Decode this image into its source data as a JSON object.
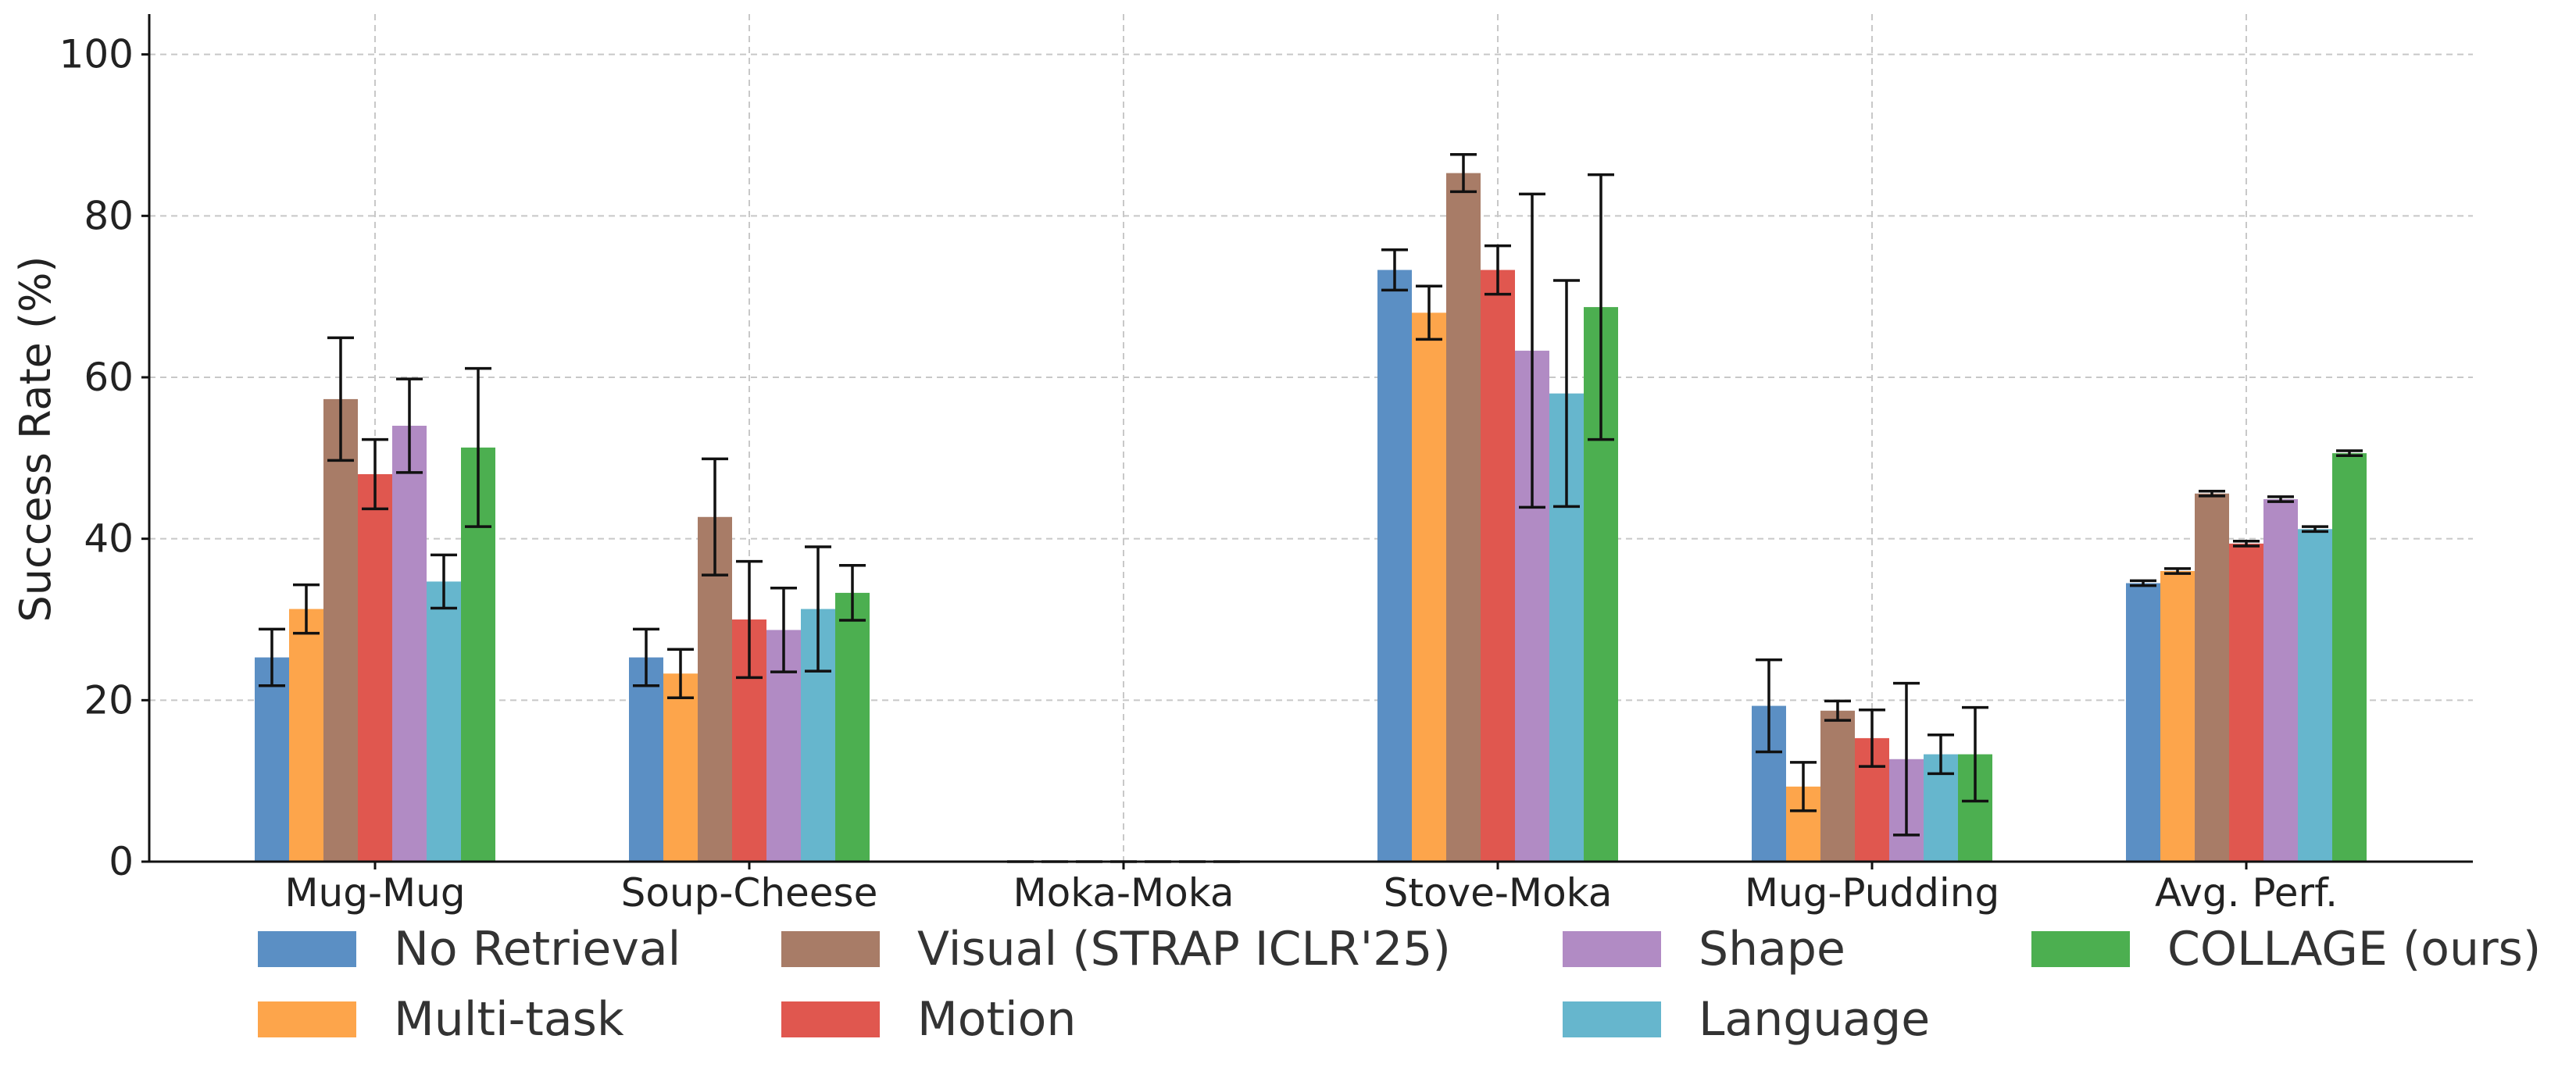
{
  "chart_data": {
    "type": "bar",
    "title": "",
    "xlabel": "",
    "ylabel": "Success Rate (%)",
    "ylim": [
      0,
      105
    ],
    "yticks": [
      0,
      20,
      40,
      60,
      80,
      100
    ],
    "grid": true,
    "legend_position": "bottom",
    "categories": [
      "Mug-Mug",
      "Soup-Cheese",
      "Moka-Moka",
      "Stove-Moka",
      "Mug-Pudding",
      "Avg. Perf."
    ],
    "series": [
      {
        "name": "No Retrieval",
        "color": "#5b8fc4",
        "values": [
          25.3,
          25.3,
          0,
          73.3,
          19.3,
          34.5
        ],
        "errors": [
          3.5,
          3.5,
          0,
          2.5,
          5.7,
          0.3
        ]
      },
      {
        "name": "Multi-task",
        "color": "#fda54b",
        "values": [
          31.3,
          23.3,
          0,
          68.0,
          9.3,
          36.0
        ],
        "errors": [
          3.0,
          3.0,
          0,
          3.3,
          3.0,
          0.3
        ]
      },
      {
        "name": "Visual (STRAP ICLR'25)",
        "color": "#a87c67",
        "values": [
          57.3,
          42.7,
          0,
          85.3,
          18.7,
          45.6
        ],
        "errors": [
          7.6,
          7.2,
          0,
          2.3,
          1.2,
          0.3
        ]
      },
      {
        "name": "Motion",
        "color": "#e0574f",
        "values": [
          48.0,
          30.0,
          0,
          73.3,
          15.3,
          39.4
        ],
        "errors": [
          4.3,
          7.2,
          0,
          3.0,
          3.5,
          0.3
        ]
      },
      {
        "name": "Shape",
        "color": "#b18bc4",
        "values": [
          54.0,
          28.7,
          0,
          63.3,
          12.7,
          44.9
        ],
        "errors": [
          5.8,
          5.2,
          0,
          19.4,
          9.4,
          0.3
        ]
      },
      {
        "name": "Language",
        "color": "#66b6cd",
        "values": [
          34.7,
          31.3,
          0,
          58.0,
          13.3,
          41.2
        ],
        "errors": [
          3.3,
          7.7,
          0,
          14.0,
          2.4,
          0.3
        ]
      },
      {
        "name": "COLLAGE (ours)",
        "color": "#4caf50",
        "values": [
          51.3,
          33.3,
          0,
          68.7,
          13.3,
          50.6
        ],
        "errors": [
          9.8,
          3.4,
          0,
          16.4,
          5.8,
          0.3
        ]
      }
    ]
  }
}
